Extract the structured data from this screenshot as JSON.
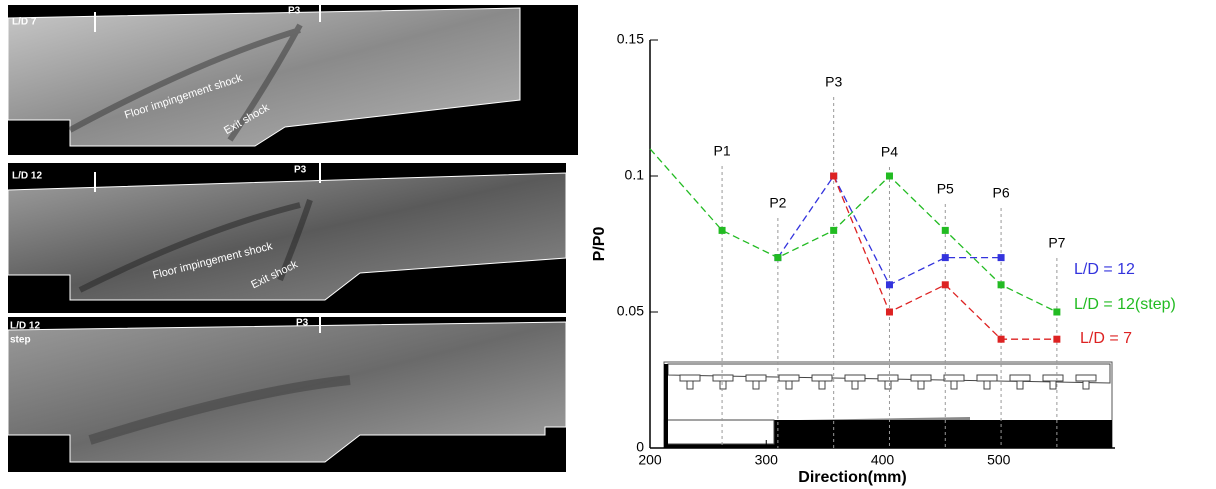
{
  "images": [
    {
      "label": "L/D 7",
      "probe": "P3",
      "annotations": [
        "Floor impingement shock",
        "Exit shock"
      ]
    },
    {
      "label": "L/D 12",
      "probe": "P3",
      "annotations": [
        "Floor impingement shock",
        "Exit shock"
      ]
    },
    {
      "label": "L/D 12",
      "sublabel": "step",
      "probe": "P3",
      "annotations": []
    }
  ],
  "chart_data": {
    "type": "line",
    "x_label": "Direction(mm)",
    "y_label": "P/P0",
    "xlim": [
      200,
      600
    ],
    "xticks": [
      200,
      300,
      400,
      500
    ],
    "ylim": [
      0,
      0.15
    ],
    "yticks": [
      0,
      0.05,
      0.1,
      0.15
    ],
    "annotations": [
      {
        "text": "P1",
        "x": 262
      },
      {
        "text": "P2",
        "x": 310
      },
      {
        "text": "P3",
        "x": 358
      },
      {
        "text": "P4",
        "x": 406
      },
      {
        "text": "P5",
        "x": 454
      },
      {
        "text": "P6",
        "x": 502
      },
      {
        "text": "P7",
        "x": 550
      }
    ],
    "series": [
      {
        "name": "L/D = 12",
        "color": "#3333dd",
        "x": [
          310,
          358,
          406,
          454,
          502
        ],
        "values": [
          0.07,
          0.1,
          0.06,
          0.07,
          0.07
        ]
      },
      {
        "name": "L/D = 12(step)",
        "color": "#22bb22",
        "x": [
          200,
          262,
          310,
          358,
          406,
          454,
          502,
          550
        ],
        "values": [
          0.11,
          0.08,
          0.07,
          0.08,
          0.1,
          0.08,
          0.06,
          0.05
        ]
      },
      {
        "name": "L/D = 7",
        "color": "#dd2222",
        "x": [
          358,
          406,
          454,
          502,
          550
        ],
        "values": [
          0.1,
          0.05,
          0.06,
          0.04,
          0.04
        ]
      }
    ]
  }
}
